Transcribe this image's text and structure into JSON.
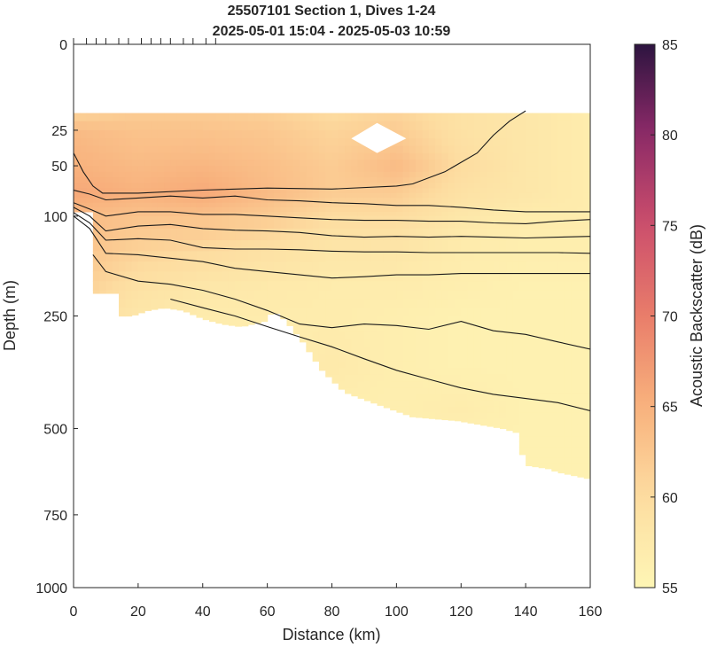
{
  "chart_data": {
    "type": "heatmap",
    "title": "25507101 Section 1, Dives 1-24",
    "subtitle": "2025-05-01 15:04 - 2025-05-03 10:59",
    "xlabel": "Distance (km)",
    "ylabel": "Depth (m)",
    "xlim": [
      0,
      160
    ],
    "ylim": [
      0,
      1000
    ],
    "y_scale": "sqrt",
    "x_ticks": [
      "0",
      "20",
      "40",
      "60",
      "80",
      "100",
      "120",
      "140",
      "160"
    ],
    "y_ticks": [
      "0",
      "25",
      "50",
      "100",
      "250",
      "500",
      "750",
      "1000"
    ],
    "colorbar": {
      "label": "Acoustic Backscatter (dB)",
      "range": [
        55,
        85
      ],
      "ticks": [
        "55",
        "60",
        "65",
        "70",
        "75",
        "80",
        "85"
      ],
      "colormap": "matter"
    },
    "dive_x_km": [
      0,
      4,
      7,
      10,
      14,
      17,
      21,
      24,
      27,
      30,
      34,
      37,
      41,
      44
    ],
    "data_top_depth": 16,
    "data_bottom_profile": {
      "x": [
        0,
        5,
        6,
        13,
        14,
        18,
        23,
        28,
        34,
        40,
        46,
        52,
        59,
        62,
        66,
        71,
        77,
        84,
        91,
        98,
        105,
        112,
        119,
        126,
        133,
        137,
        140,
        147,
        150,
        160
      ],
      "depth": [
        95,
        95,
        210,
        210,
        250,
        250,
        240,
        235,
        240,
        255,
        265,
        270,
        260,
        240,
        260,
        300,
        360,
        410,
        430,
        450,
        470,
        475,
        480,
        490,
        500,
        510,
        600,
        610,
        620,
        640
      ]
    },
    "backscatter": {
      "x": [
        0,
        20,
        40,
        60,
        80,
        100,
        120,
        140,
        160
      ],
      "depth": [
        16,
        25,
        50,
        75,
        100,
        150,
        200,
        250,
        350,
        450,
        550,
        650
      ],
      "values_db": [
        [
          61,
          62,
          62,
          61.5,
          60,
          61,
          59,
          58,
          57
        ],
        [
          64,
          63,
          63,
          62.5,
          61,
          62,
          59,
          58,
          57
        ],
        [
          65,
          64,
          64.5,
          63.5,
          62,
          64,
          60,
          58,
          57
        ],
        [
          66,
          65,
          66,
          64,
          62,
          62,
          59,
          58,
          57
        ],
        [
          64,
          63,
          63,
          62,
          60,
          60,
          58,
          57,
          57
        ],
        [
          63,
          61,
          60,
          59,
          58,
          58,
          57,
          56.5,
          56.5
        ],
        [
          62,
          59,
          58,
          57.5,
          57,
          57,
          56.5,
          56,
          56
        ],
        [
          60,
          58,
          57,
          57,
          57,
          56.5,
          56,
          56,
          56
        ],
        [
          57,
          57,
          57,
          56.5,
          57.5,
          56.5,
          56,
          56,
          56
        ],
        [
          56,
          56,
          56,
          56,
          56.5,
          56.5,
          57,
          56,
          56
        ],
        [
          56,
          56,
          56,
          56,
          56,
          56,
          56,
          56,
          56
        ],
        [
          56,
          56,
          56,
          56,
          56,
          56,
          56,
          56,
          56
        ]
      ]
    },
    "missing_patch": {
      "x": [
        86,
        94,
        103
      ],
      "depth": [
        30,
        21,
        30,
        40
      ]
    },
    "contours": [
      {
        "x": [
          0,
          3,
          6,
          9,
          20,
          40,
          60,
          80,
          100,
          105,
          115,
          125,
          130,
          135,
          140
        ],
        "depth": [
          40,
          55,
          68,
          75,
          75,
          72,
          70,
          71,
          68,
          66,
          55,
          40,
          28,
          20,
          15
        ]
      },
      {
        "x": [
          0,
          5,
          10,
          20,
          30,
          40,
          50,
          60,
          70,
          80,
          90,
          100,
          110,
          120,
          130,
          140,
          150,
          160
        ],
        "depth": [
          72,
          76,
          82,
          80,
          78,
          80,
          78,
          82,
          83,
          85,
          86,
          88,
          88,
          90,
          93,
          95,
          95,
          95
        ]
      },
      {
        "x": [
          0,
          5,
          10,
          20,
          30,
          40,
          50,
          60,
          70,
          80,
          90,
          100,
          110,
          120,
          130,
          140,
          150,
          160
        ],
        "depth": [
          85,
          92,
          100,
          95,
          95,
          98,
          98,
          100,
          102,
          104,
          105,
          105,
          106,
          106,
          108,
          109,
          106,
          104
        ]
      },
      {
        "x": [
          0,
          5,
          10,
          20,
          30,
          40,
          50,
          60,
          70,
          80,
          90,
          100,
          110,
          120,
          130,
          140,
          150,
          160
        ],
        "depth": [
          90,
          100,
          118,
          112,
          110,
          115,
          117,
          118,
          120,
          124,
          126,
          125,
          126,
          125,
          126,
          127,
          126,
          125
        ]
      },
      {
        "x": [
          0,
          5,
          10,
          20,
          30,
          40,
          50,
          60,
          70,
          80,
          90,
          100,
          110,
          120,
          130,
          140,
          150,
          160
        ],
        "depth": [
          96,
          108,
          130,
          128,
          130,
          140,
          142,
          142,
          143,
          145,
          146,
          146,
          147,
          147,
          147,
          147,
          147,
          148
        ]
      },
      {
        "x": [
          0,
          5,
          10,
          20,
          30,
          40,
          50,
          60,
          70,
          80,
          90,
          100,
          110,
          120,
          130,
          140,
          150,
          160
        ],
        "depth": [
          100,
          115,
          148,
          150,
          155,
          160,
          170,
          175,
          180,
          185,
          183,
          180,
          180,
          178,
          178,
          178,
          178,
          178
        ]
      },
      {
        "x": [
          6,
          10,
          20,
          30,
          40,
          50,
          60,
          70,
          80,
          90,
          100,
          110,
          120,
          130,
          140,
          150,
          160
        ],
        "depth": [
          150,
          175,
          190,
          195,
          205,
          220,
          240,
          265,
          272,
          265,
          268,
          275,
          260,
          278,
          285,
          300,
          315
        ]
      },
      {
        "x": [
          30,
          40,
          50,
          60,
          70,
          80,
          90,
          100,
          110,
          120,
          130,
          140,
          150,
          160
        ],
        "depth": [
          220,
          235,
          250,
          270,
          290,
          310,
          335,
          360,
          380,
          400,
          415,
          425,
          435,
          455
        ]
      }
    ]
  }
}
